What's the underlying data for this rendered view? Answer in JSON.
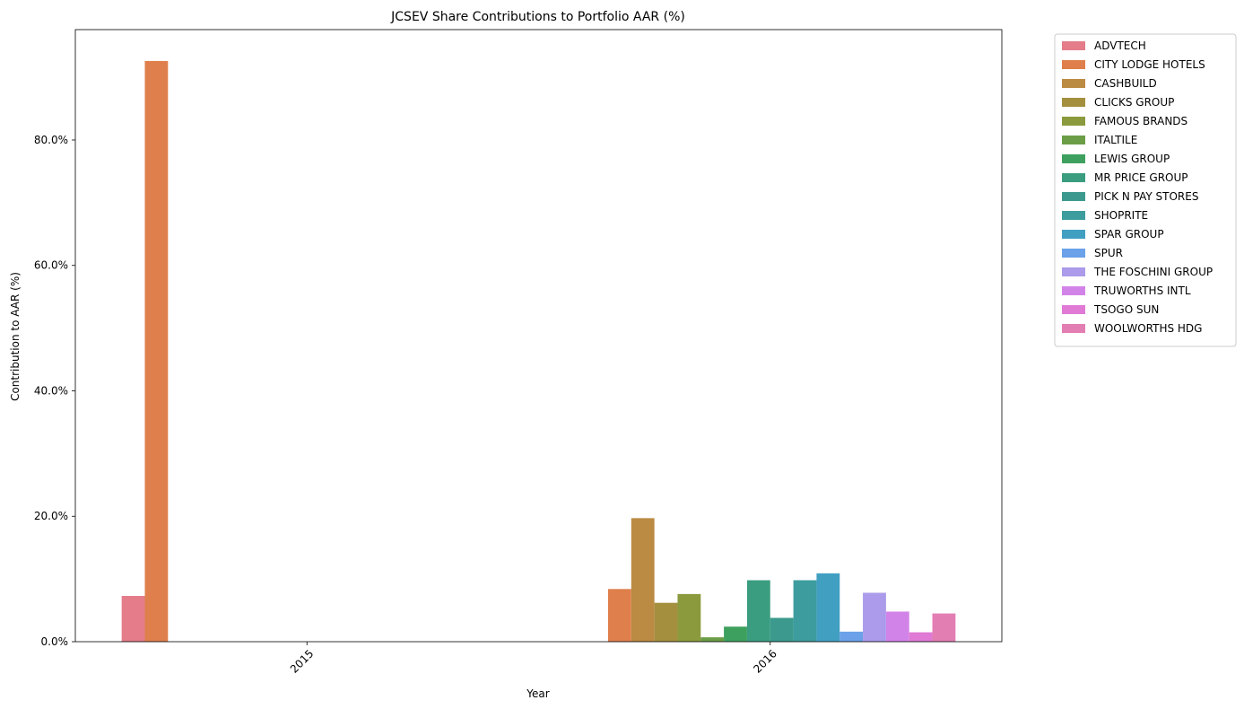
{
  "chart_data": {
    "type": "bar",
    "title": "JCSEV Share Contributions to Portfolio AAR (%)",
    "xlabel": "Year",
    "ylabel": "Contribution to AAR (%)",
    "categories": [
      "2015",
      "2016"
    ],
    "ylim": [
      0,
      97.6
    ],
    "yticks": [
      0,
      20,
      40,
      60,
      80
    ],
    "ytick_labels": [
      "0.0%",
      "20.0%",
      "40.0%",
      "60.0%",
      "80.0%"
    ],
    "grid": false,
    "legend_position": "outside top-right",
    "series": [
      {
        "name": "ADVTECH",
        "color": "#e47c8a",
        "values": [
          7.3,
          0
        ]
      },
      {
        "name": "CITY LODGE HOTELS",
        "color": "#df7f4b",
        "values": [
          92.6,
          8.4
        ]
      },
      {
        "name": "CASHBUILD",
        "color": "#bb8a43",
        "values": [
          0,
          19.7
        ]
      },
      {
        "name": "CLICKS GROUP",
        "color": "#a48f3f",
        "values": [
          0,
          6.2
        ]
      },
      {
        "name": "FAMOUS BRANDS",
        "color": "#8b9a3c",
        "values": [
          0,
          7.6
        ]
      },
      {
        "name": "ITALTILE",
        "color": "#6a9d45",
        "values": [
          0,
          0.7
        ]
      },
      {
        "name": "LEWIS GROUP",
        "color": "#3ea05e",
        "values": [
          0,
          2.4
        ]
      },
      {
        "name": "MR PRICE GROUP",
        "color": "#3a9d80",
        "values": [
          0,
          9.8
        ]
      },
      {
        "name": "PICK N PAY STORES",
        "color": "#3b9a8d",
        "values": [
          0,
          3.8
        ]
      },
      {
        "name": "SHOPRITE",
        "color": "#3d9c9e",
        "values": [
          0,
          9.8
        ]
      },
      {
        "name": "SPAR GROUP",
        "color": "#419fc2",
        "values": [
          0,
          10.9
        ]
      },
      {
        "name": "SPUR",
        "color": "#6aa1e8",
        "values": [
          0,
          1.6
        ]
      },
      {
        "name": "THE FOSCHINI GROUP",
        "color": "#ab9bea",
        "values": [
          0,
          7.8
        ]
      },
      {
        "name": "TRUWORTHS INTL",
        "color": "#d283e8",
        "values": [
          0,
          4.8
        ]
      },
      {
        "name": "TSOGO SUN",
        "color": "#e07ad5",
        "values": [
          0,
          1.5
        ]
      },
      {
        "name": "WOOLWORTHS HDG",
        "color": "#e37eb3",
        "values": [
          0,
          4.5
        ]
      }
    ]
  }
}
